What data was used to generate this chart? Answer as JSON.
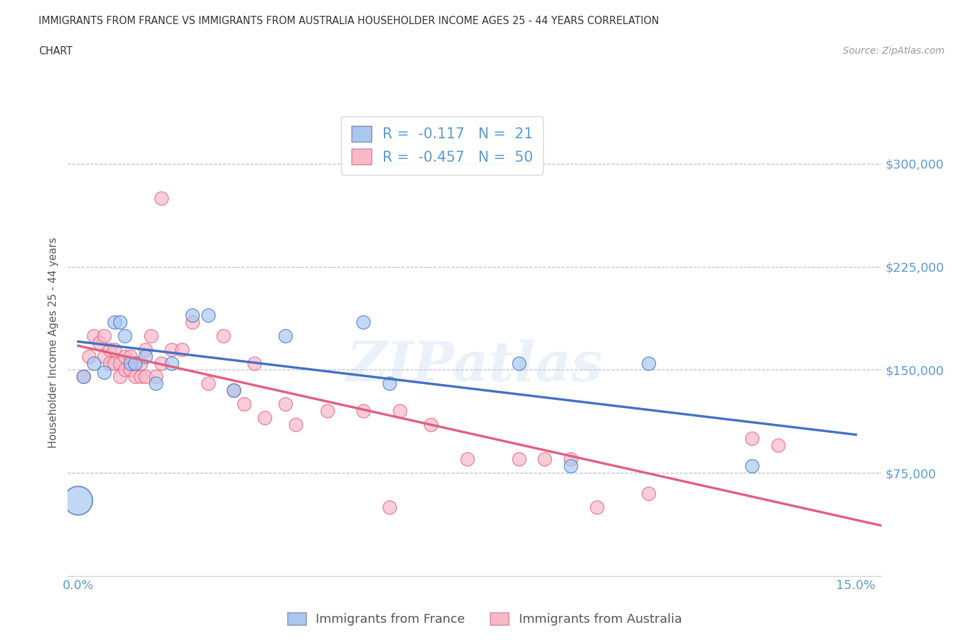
{
  "title_line1": "IMMIGRANTS FROM FRANCE VS IMMIGRANTS FROM AUSTRALIA HOUSEHOLDER INCOME AGES 25 - 44 YEARS CORRELATION",
  "title_line2": "CHART",
  "source_text": "Source: ZipAtlas.com",
  "ylabel": "Householder Income Ages 25 - 44 years",
  "xlim": [
    -0.002,
    0.155
  ],
  "ylim": [
    0,
    340000
  ],
  "yticks": [
    75000,
    150000,
    225000,
    300000
  ],
  "ytick_labels": [
    "$75,000",
    "$150,000",
    "$225,000",
    "$300,000"
  ],
  "xticks": [
    0.0,
    0.025,
    0.05,
    0.075,
    0.1,
    0.125,
    0.15
  ],
  "xtick_labels": [
    "0.0%",
    "",
    "",
    "",
    "",
    "",
    "15.0%"
  ],
  "france_color": "#a8c8f0",
  "australia_color": "#f8b8c8",
  "france_line_color": "#4472c4",
  "australia_line_color": "#e06080",
  "france_R": -0.117,
  "france_N": 21,
  "australia_R": -0.457,
  "australia_N": 50,
  "france_x": [
    0.001,
    0.003,
    0.005,
    0.007,
    0.008,
    0.009,
    0.01,
    0.011,
    0.013,
    0.015,
    0.018,
    0.022,
    0.025,
    0.03,
    0.04,
    0.055,
    0.06,
    0.085,
    0.095,
    0.11,
    0.13
  ],
  "france_y": [
    145000,
    155000,
    148000,
    185000,
    185000,
    175000,
    155000,
    155000,
    160000,
    140000,
    155000,
    190000,
    190000,
    135000,
    175000,
    185000,
    140000,
    155000,
    80000,
    155000,
    80000
  ],
  "australia_x": [
    0.001,
    0.002,
    0.003,
    0.004,
    0.005,
    0.005,
    0.006,
    0.006,
    0.007,
    0.007,
    0.008,
    0.008,
    0.009,
    0.009,
    0.01,
    0.01,
    0.011,
    0.011,
    0.012,
    0.012,
    0.013,
    0.013,
    0.014,
    0.015,
    0.016,
    0.016,
    0.018,
    0.02,
    0.022,
    0.025,
    0.028,
    0.03,
    0.032,
    0.034,
    0.036,
    0.04,
    0.042,
    0.048,
    0.055,
    0.06,
    0.062,
    0.068,
    0.075,
    0.085,
    0.09,
    0.095,
    0.1,
    0.11,
    0.13,
    0.135
  ],
  "australia_y": [
    145000,
    160000,
    175000,
    170000,
    160000,
    175000,
    155000,
    165000,
    155000,
    165000,
    145000,
    155000,
    150000,
    160000,
    150000,
    160000,
    145000,
    155000,
    145000,
    155000,
    165000,
    145000,
    175000,
    145000,
    155000,
    275000,
    165000,
    165000,
    185000,
    140000,
    175000,
    135000,
    125000,
    155000,
    115000,
    125000,
    110000,
    120000,
    120000,
    50000,
    120000,
    110000,
    85000,
    85000,
    85000,
    85000,
    50000,
    60000,
    100000,
    95000
  ],
  "watermark_text": "ZIPatlas",
  "background_color": "#ffffff",
  "grid_color": "#bbbbdd",
  "tick_color": "#5b9bd5",
  "legend_france_label": "Immigrants from France",
  "legend_australia_label": "Immigrants from Australia",
  "france_marker_sizes": [
    300,
    80,
    80,
    80,
    80,
    80,
    80,
    80,
    80,
    80,
    80,
    80,
    80,
    80,
    80,
    80,
    80,
    80,
    80,
    80,
    80
  ],
  "australia_marker_sizes": [
    300,
    80,
    80,
    80,
    80,
    80,
    80,
    80,
    80,
    80,
    80,
    80,
    80,
    80,
    80,
    80,
    80,
    80,
    80,
    80,
    80,
    80,
    80,
    80,
    80,
    80,
    80,
    80,
    80,
    80,
    80,
    80,
    80,
    80,
    80,
    80,
    80,
    80,
    80,
    80,
    80,
    80,
    80,
    80,
    80,
    80,
    80,
    80,
    80,
    80
  ]
}
